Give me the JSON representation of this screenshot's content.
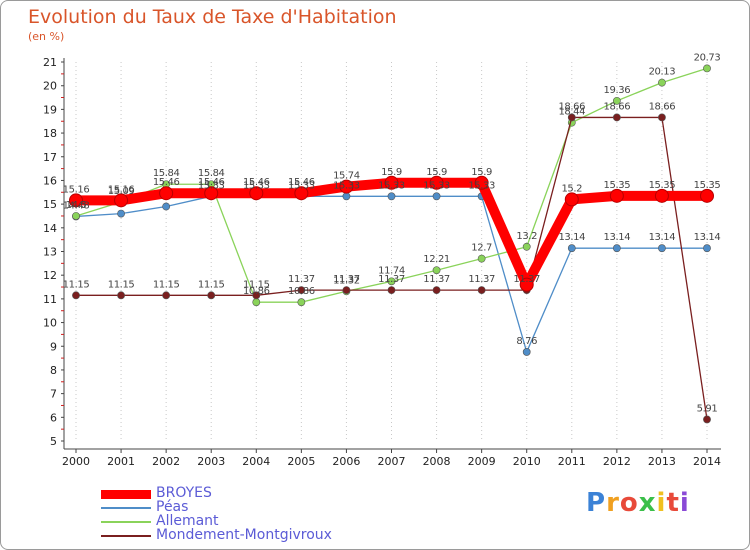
{
  "chart_data": {
    "type": "line",
    "title": "Evolution du Taux de Taxe d'Habitation",
    "subtitle": "(en %)",
    "x": [
      "2000",
      "2001",
      "2002",
      "2003",
      "2004",
      "2005",
      "2006",
      "2007",
      "2008",
      "2009",
      "2010",
      "2011",
      "2012",
      "2013",
      "2014"
    ],
    "ylim": [
      5,
      21
    ],
    "yticks": [
      "5",
      "6",
      "7",
      "8",
      "9",
      "10",
      "11",
      "12",
      "13",
      "14",
      "15",
      "16",
      "17",
      "18",
      "19",
      "20",
      "21"
    ],
    "grid": "vertical-only",
    "legend_position": "bottom-left",
    "series": [
      {
        "name": "BROYES",
        "color": "#ff0000",
        "values": [
          15.16,
          15.16,
          15.46,
          15.46,
          15.46,
          15.46,
          15.74,
          15.9,
          15.9,
          15.9,
          11.6,
          15.2,
          15.35,
          15.35,
          15.35
        ],
        "labels": [
          "15.16",
          "15.16",
          "15.46",
          "15.46",
          "15.46",
          "15.46",
          "15.74",
          "15.9",
          "15.9",
          "15.9",
          "",
          "15.2",
          "15.35",
          "15.35",
          "15.35"
        ]
      },
      {
        "name": "Péas",
        "color": "#4f8dc8",
        "values": [
          14.48,
          14.6,
          14.9,
          15.33,
          15.33,
          15.33,
          15.33,
          15.33,
          15.33,
          15.33,
          8.76,
          13.14,
          13.14,
          13.14,
          13.14
        ],
        "labels": [
          "14.48",
          "",
          "",
          "15.33",
          "15.33",
          "15.33",
          "15.33",
          "15.33",
          "15.33",
          "15.33",
          "8.76",
          "13.14",
          "13.14",
          "13.14",
          "13.14"
        ]
      },
      {
        "name": "Allemant",
        "color": "#8ad35a",
        "values": [
          14.5,
          15.09,
          15.84,
          15.84,
          10.86,
          10.86,
          11.32,
          11.74,
          12.21,
          12.7,
          13.2,
          18.44,
          19.36,
          20.13,
          20.73
        ],
        "labels": [
          "14.5",
          "15.09",
          "15.84",
          "15.84",
          "10.86",
          "10.86",
          "11.32",
          "11.74",
          "12.21",
          "12.7",
          "13.2",
          "18.44",
          "19.36",
          "20.13",
          "20.73"
        ]
      },
      {
        "name": "Mondement-Montgivroux",
        "color": "#7a1f1f",
        "values": [
          11.15,
          11.15,
          11.15,
          11.15,
          11.15,
          11.37,
          11.37,
          11.37,
          11.37,
          11.37,
          11.37,
          18.66,
          18.66,
          18.66,
          5.91
        ],
        "labels": [
          "11.15",
          "11.15",
          "11.15",
          "11.15",
          "11.15",
          "11.37",
          "11.37",
          "11.37",
          "11.37",
          "11.37",
          "11.37",
          "18.66",
          "18.66",
          "18.66",
          "5.91"
        ]
      }
    ]
  },
  "brand": {
    "letters": [
      "P",
      "r",
      "o",
      "x",
      "i",
      "t",
      "i"
    ],
    "colors": [
      "#3b82d6",
      "#f0a020",
      "#e84a3a",
      "#3bbf4a",
      "#f0c020",
      "#e84a3a",
      "#8a4ad6"
    ]
  }
}
